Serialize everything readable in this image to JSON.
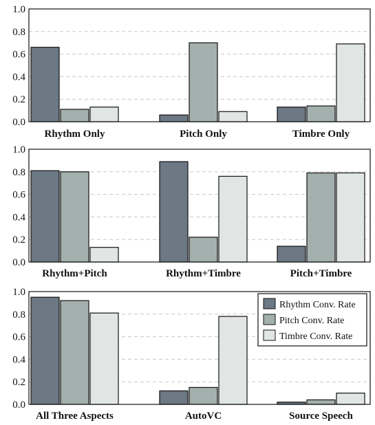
{
  "colors": {
    "rhythm": "#6c7884",
    "pitch": "#a3b0ad",
    "timbre": "#e1e6e4",
    "bar_stroke": "#111111",
    "grid": "#c8c8c8"
  },
  "legend": {
    "position": "top-right of bottom panel",
    "items": [
      {
        "label": "Rhythm Conv. Rate",
        "color_key": "rhythm"
      },
      {
        "label": "Pitch Conv. Rate",
        "color_key": "pitch"
      },
      {
        "label": "Timbre Conv. Rate",
        "color_key": "timbre"
      }
    ]
  },
  "chart_data": [
    {
      "type": "bar",
      "categories": [
        "Rhythm Only",
        "Pitch Only",
        "Timbre Only"
      ],
      "series": [
        {
          "name": "Rhythm Conv. Rate",
          "values": [
            0.66,
            0.06,
            0.13
          ]
        },
        {
          "name": "Pitch Conv. Rate",
          "values": [
            0.11,
            0.7,
            0.14
          ]
        },
        {
          "name": "Timbre Conv. Rate",
          "values": [
            0.13,
            0.09,
            0.69
          ]
        }
      ],
      "ylim": [
        0,
        1.0
      ],
      "yticks": [
        "0.0",
        "0.2",
        "0.4",
        "0.6",
        "0.8",
        "1.0"
      ],
      "grid": "horizontal dashed"
    },
    {
      "type": "bar",
      "categories": [
        "Rhythm+Pitch",
        "Rhythm+Timbre",
        "Pitch+Timbre"
      ],
      "series": [
        {
          "name": "Rhythm Conv. Rate",
          "values": [
            0.81,
            0.89,
            0.14
          ]
        },
        {
          "name": "Pitch Conv. Rate",
          "values": [
            0.8,
            0.22,
            0.79
          ]
        },
        {
          "name": "Timbre Conv. Rate",
          "values": [
            0.13,
            0.76,
            0.79
          ]
        }
      ],
      "ylim": [
        0,
        1.0
      ],
      "yticks": [
        "0.0",
        "0.2",
        "0.4",
        "0.6",
        "0.8",
        "1.0"
      ],
      "grid": "horizontal dashed"
    },
    {
      "type": "bar",
      "categories": [
        "All Three Aspects",
        "AutoVC",
        "Source Speech"
      ],
      "series": [
        {
          "name": "Rhythm Conv. Rate",
          "values": [
            0.95,
            0.12,
            0.02
          ]
        },
        {
          "name": "Pitch Conv. Rate",
          "values": [
            0.92,
            0.15,
            0.04
          ]
        },
        {
          "name": "Timbre Conv. Rate",
          "values": [
            0.81,
            0.78,
            0.1
          ]
        }
      ],
      "ylim": [
        0,
        1.0
      ],
      "yticks": [
        "0.0",
        "0.2",
        "0.4",
        "0.6",
        "0.8",
        "1.0"
      ],
      "grid": "horizontal dashed"
    }
  ]
}
